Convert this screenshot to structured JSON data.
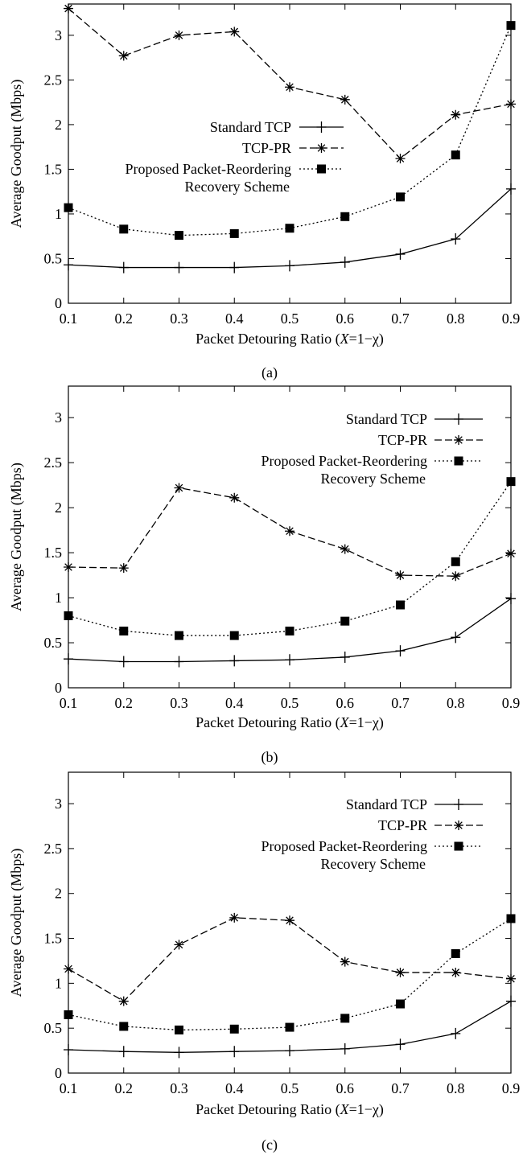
{
  "chart_data": [
    {
      "type": "line",
      "caption": "(a)",
      "xlabel_prefix": "Packet Detouring Ratio (",
      "xlabel_var": "X",
      "xlabel_suffix": "=1−χ)",
      "ylabel": "Average Goodput (Mbps)",
      "xlim": [
        0.1,
        0.9
      ],
      "ylim": [
        0,
        3.35
      ],
      "x_ticks": [
        "0.1",
        "0.2",
        "0.3",
        "0.4",
        "0.5",
        "0.6",
        "0.7",
        "0.8",
        "0.9"
      ],
      "y_ticks": [
        "0",
        "0.5",
        "1",
        "1.5",
        "2",
        "2.5",
        "3"
      ],
      "x": [
        0.1,
        0.2,
        0.3,
        0.4,
        0.5,
        0.6,
        0.7,
        0.8,
        0.9
      ],
      "legend_position": "center",
      "series": [
        {
          "name": "Standard TCP",
          "marker": "plus",
          "dash": "solid",
          "values": [
            0.43,
            0.4,
            0.4,
            0.4,
            0.42,
            0.46,
            0.55,
            0.72,
            1.28
          ]
        },
        {
          "name": "TCP-PR",
          "marker": "asterisk",
          "dash": "long-dash",
          "values": [
            3.3,
            2.77,
            3.0,
            3.04,
            2.42,
            2.28,
            1.62,
            2.11,
            2.23
          ]
        },
        {
          "name": "Proposed Packet-Reordering",
          "name_line2": "Recovery Scheme",
          "marker": "square",
          "dash": "dotted",
          "values": [
            1.07,
            0.83,
            0.76,
            0.78,
            0.84,
            0.97,
            1.19,
            1.66,
            3.11
          ]
        }
      ]
    },
    {
      "type": "line",
      "caption": "(b)",
      "xlabel_prefix": "Packet Detouring Ratio (",
      "xlabel_var": "X",
      "xlabel_suffix": "=1−χ)",
      "ylabel": "Average Goodput (Mbps)",
      "xlim": [
        0.1,
        0.9
      ],
      "ylim": [
        0,
        3.35
      ],
      "x_ticks": [
        "0.1",
        "0.2",
        "0.3",
        "0.4",
        "0.5",
        "0.6",
        "0.7",
        "0.8",
        "0.9"
      ],
      "y_ticks": [
        "0",
        "0.5",
        "1",
        "1.5",
        "2",
        "2.5",
        "3"
      ],
      "x": [
        0.1,
        0.2,
        0.3,
        0.4,
        0.5,
        0.6,
        0.7,
        0.8,
        0.9
      ],
      "legend_position": "top-right",
      "series": [
        {
          "name": "Standard TCP",
          "marker": "plus",
          "dash": "solid",
          "values": [
            0.32,
            0.29,
            0.29,
            0.3,
            0.31,
            0.34,
            0.41,
            0.56,
            0.99
          ]
        },
        {
          "name": "TCP-PR",
          "marker": "asterisk",
          "dash": "long-dash",
          "values": [
            1.34,
            1.33,
            2.22,
            2.11,
            1.74,
            1.54,
            1.25,
            1.24,
            1.49
          ]
        },
        {
          "name": "Proposed Packet-Reordering",
          "name_line2": "Recovery Scheme",
          "marker": "square",
          "dash": "dotted",
          "values": [
            0.8,
            0.63,
            0.58,
            0.58,
            0.63,
            0.74,
            0.92,
            1.4,
            2.29
          ]
        }
      ]
    },
    {
      "type": "line",
      "caption": "(c)",
      "xlabel_prefix": "Packet Detouring Ratio (",
      "xlabel_var": "X",
      "xlabel_suffix": "=1−χ)",
      "ylabel": "Average Goodput (Mbps)",
      "xlim": [
        0.1,
        0.9
      ],
      "ylim": [
        0,
        3.35
      ],
      "x_ticks": [
        "0.1",
        "0.2",
        "0.3",
        "0.4",
        "0.5",
        "0.6",
        "0.7",
        "0.8",
        "0.9"
      ],
      "y_ticks": [
        "0",
        "0.5",
        "1",
        "1.5",
        "2",
        "2.5",
        "3"
      ],
      "x": [
        0.1,
        0.2,
        0.3,
        0.4,
        0.5,
        0.6,
        0.7,
        0.8,
        0.9
      ],
      "legend_position": "top-right",
      "series": [
        {
          "name": "Standard TCP",
          "marker": "plus",
          "dash": "solid",
          "values": [
            0.26,
            0.24,
            0.23,
            0.24,
            0.25,
            0.27,
            0.32,
            0.44,
            0.8
          ]
        },
        {
          "name": "TCP-PR",
          "marker": "asterisk",
          "dash": "long-dash",
          "values": [
            1.16,
            0.8,
            1.43,
            1.73,
            1.7,
            1.24,
            1.12,
            1.12,
            1.05
          ]
        },
        {
          "name": "Proposed Packet-Reordering",
          "name_line2": "Recovery Scheme",
          "marker": "square",
          "dash": "dotted",
          "values": [
            0.65,
            0.52,
            0.48,
            0.49,
            0.51,
            0.61,
            0.77,
            1.33,
            1.72
          ]
        }
      ]
    }
  ]
}
